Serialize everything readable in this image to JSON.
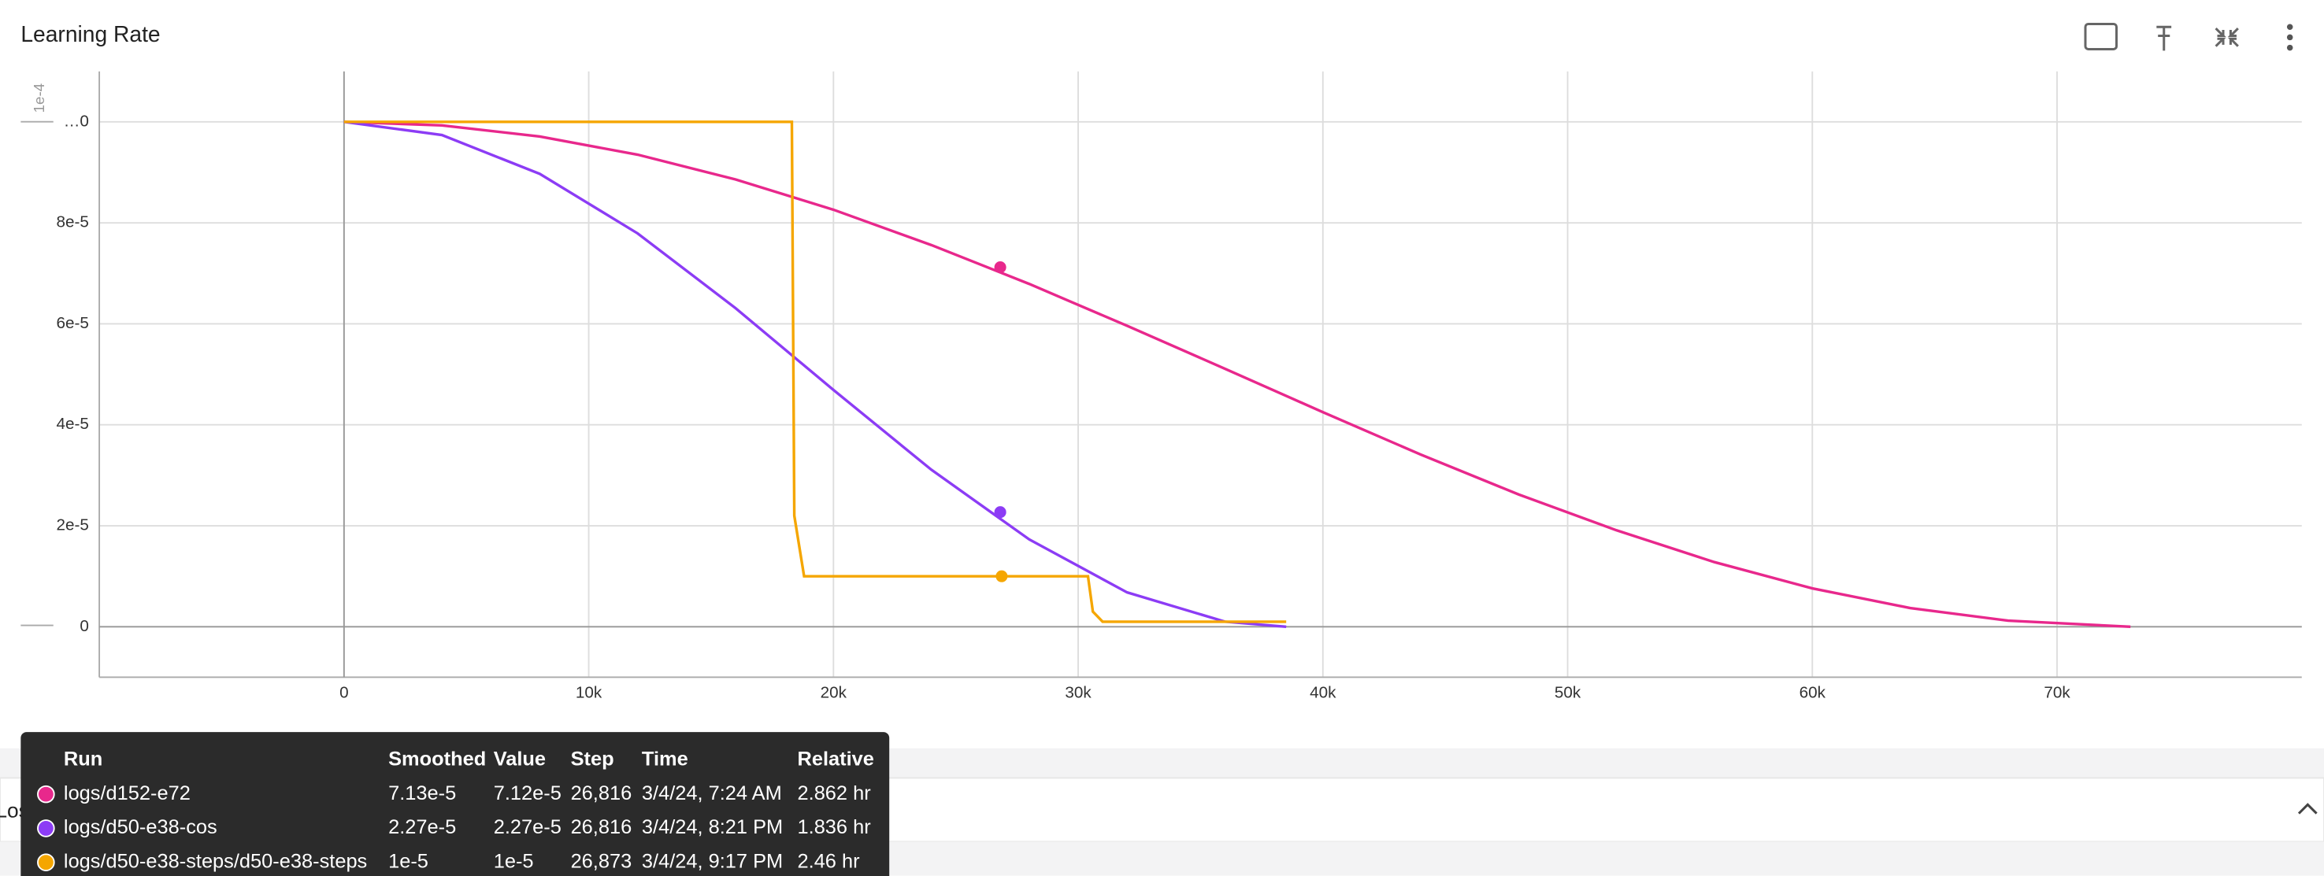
{
  "card": {
    "title": "Learning Rate"
  },
  "chart_data": {
    "type": "line",
    "y_axis_label": "1e-4",
    "xlim": [
      -10000,
      80000
    ],
    "ylim": [
      -1e-05,
      0.00011
    ],
    "xticks": [
      0,
      {
        "value": 10000,
        "label": "10k"
      },
      {
        "value": 20000,
        "label": "20k"
      },
      {
        "value": 30000,
        "label": "30k"
      },
      {
        "value": 40000,
        "label": "40k"
      },
      {
        "value": 50000,
        "label": "50k"
      },
      {
        "value": 60000,
        "label": "60k"
      },
      {
        "value": 70000,
        "label": "70k"
      }
    ],
    "yticks": [
      0,
      {
        "value": 2e-05,
        "label": "2e-5"
      },
      {
        "value": 4e-05,
        "label": "4e-5"
      },
      {
        "value": 6e-05,
        "label": "6e-5"
      },
      {
        "value": 8e-05,
        "label": "8e-5"
      },
      {
        "value": 0.0001,
        "label": "…0"
      }
    ],
    "grid": true,
    "series": [
      {
        "name": "logs/d152-e72",
        "color": "#e8288c",
        "x": [
          0,
          4000,
          8000,
          12000,
          16000,
          20000,
          24000,
          28000,
          32000,
          36000,
          40000,
          44000,
          48000,
          52000,
          56000,
          60000,
          64000,
          68000,
          73000
        ],
        "values": [
          0.0001,
          9.93e-05,
          9.71e-05,
          9.35e-05,
          8.86e-05,
          8.26e-05,
          7.56e-05,
          6.79e-05,
          5.96e-05,
          5.11e-05,
          4.25e-05,
          3.41e-05,
          2.62e-05,
          1.91e-05,
          1.28e-05,
          7.6e-06,
          3.7e-06,
          1.2e-06,
          0
        ],
        "hover_x": 26816,
        "hover_y": 7.12e-05
      },
      {
        "name": "logs/d50-e38-cos",
        "color": "#8c3cf5",
        "x": [
          0,
          4000,
          8000,
          12000,
          16000,
          20000,
          24000,
          28000,
          32000,
          36000,
          38500
        ],
        "values": [
          0.0001,
          9.74e-05,
          8.97e-05,
          7.79e-05,
          6.31e-05,
          4.69e-05,
          3.11e-05,
          1.73e-05,
          6.8e-06,
          1e-06,
          0
        ],
        "hover_x": 26816,
        "hover_y": 2.27e-05
      },
      {
        "name": "logs/d50-e38-steps/d50-e38-steps",
        "color": "#f5a600",
        "x": [
          0,
          18300,
          18400,
          18800,
          30400,
          30600,
          31000,
          38500
        ],
        "values": [
          0.0001,
          0.0001,
          2.2e-05,
          1e-05,
          1e-05,
          3e-06,
          1e-06,
          1e-06
        ],
        "hover_x": 26873,
        "hover_y": 1e-05
      }
    ]
  },
  "tooltip": {
    "headers": [
      "Run",
      "Smoothed",
      "Value",
      "Step",
      "Time",
      "Relative"
    ],
    "rows": [
      [
        "logs/d152-e72",
        "7.13e-5",
        "7.12e-5",
        "26,816",
        "3/4/24, 7:24 AM",
        "2.862 hr"
      ],
      [
        "logs/d50-e38-cos",
        "2.27e-5",
        "2.27e-5",
        "26,816",
        "3/4/24, 8:21 PM",
        "1.836 hr"
      ],
      [
        "logs/d50-e38-steps/d50-e38-steps",
        "1e-5",
        "1e-5",
        "26,873",
        "3/4/24, 9:17 PM",
        "2.46 hr"
      ]
    ]
  },
  "section": {
    "title": "Loss"
  }
}
